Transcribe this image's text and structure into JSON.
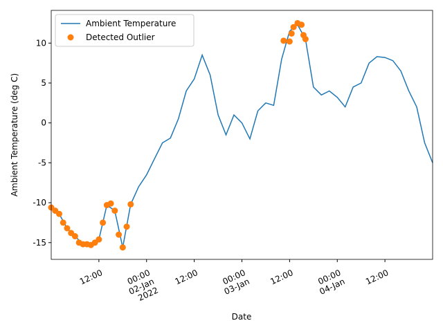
{
  "chart_data": {
    "type": "line",
    "xlabel": "Date",
    "ylabel": "Ambient Temperature (deg C)",
    "xlim": [
      "2022-01-01 00:00",
      "2022-01-05 00:00"
    ],
    "xticks": [
      {
        "value": "2022-01-01 12:00",
        "label": "12:00"
      },
      {
        "value": "2022-01-02 00:00",
        "label": "00:00\n02-Jan\n2022"
      },
      {
        "value": "2022-01-02 12:00",
        "label": "12:00"
      },
      {
        "value": "2022-01-03 00:00",
        "label": "00:00\n03-Jan"
      },
      {
        "value": "2022-01-03 12:00",
        "label": "12:00"
      },
      {
        "value": "2022-01-04 00:00",
        "label": "00:00\n04-Jan"
      },
      {
        "value": "2022-01-04 12:00",
        "label": "12:00"
      }
    ],
    "ylim": [
      -17.1,
      14.1
    ],
    "yticks": [
      -15,
      -10,
      -5,
      0,
      5,
      10
    ],
    "legend": "upper left",
    "series": [
      {
        "name": "Ambient Temperature",
        "type": "line",
        "color": "#1f77b4",
        "x": [
          "2022-01-01 00:00",
          "2022-01-01 02:00",
          "2022-01-01 04:00",
          "2022-01-01 06:00",
          "2022-01-01 08:00",
          "2022-01-01 10:00",
          "2022-01-01 12:00",
          "2022-01-01 14:00",
          "2022-01-01 16:00",
          "2022-01-01 18:00",
          "2022-01-01 20:00",
          "2022-01-01 22:00",
          "2022-01-02 00:00",
          "2022-01-02 02:00",
          "2022-01-02 04:00",
          "2022-01-02 06:00",
          "2022-01-02 08:00",
          "2022-01-02 10:00",
          "2022-01-02 12:00",
          "2022-01-02 14:00",
          "2022-01-02 16:00",
          "2022-01-02 18:00",
          "2022-01-02 20:00",
          "2022-01-02 22:00",
          "2022-01-03 00:00",
          "2022-01-03 02:00",
          "2022-01-03 04:00",
          "2022-01-03 06:00",
          "2022-01-03 08:00",
          "2022-01-03 10:00",
          "2022-01-03 12:00",
          "2022-01-03 14:00",
          "2022-01-03 16:00",
          "2022-01-03 18:00",
          "2022-01-03 20:00",
          "2022-01-03 22:00",
          "2022-01-04 00:00",
          "2022-01-04 02:00",
          "2022-01-04 04:00",
          "2022-01-04 06:00",
          "2022-01-04 08:00",
          "2022-01-04 10:00",
          "2022-01-04 12:00",
          "2022-01-04 14:00",
          "2022-01-04 16:00",
          "2022-01-04 18:00",
          "2022-01-04 20:00",
          "2022-01-04 22:00",
          "2022-01-05 00:00"
        ],
        "values": [
          -10.6,
          -11.4,
          -13.2,
          -14.2,
          -15.2,
          -15.3,
          -14.6,
          -10.3,
          -11.0,
          -15.6,
          -10.2,
          -8.0,
          -6.5,
          -4.5,
          -2.5,
          -1.9,
          0.5,
          4.0,
          5.5,
          8.5,
          6.0,
          1.0,
          -1.5,
          1.0,
          0.0,
          -2.0,
          1.5,
          2.5,
          2.2,
          8.0,
          11.5,
          12.3,
          10.5,
          4.5,
          3.5,
          4.0,
          3.2,
          2.0,
          4.5,
          5.0,
          7.5,
          8.3,
          8.2,
          7.8,
          6.5,
          4.0,
          2.0,
          -2.5,
          -5.0
        ]
      },
      {
        "name": "Detected Outlier",
        "type": "scatter",
        "color": "#ff7f0e",
        "x": [
          "2022-01-01 00:00",
          "2022-01-01 01:00",
          "2022-01-01 02:00",
          "2022-01-01 03:00",
          "2022-01-01 04:00",
          "2022-01-01 05:00",
          "2022-01-01 06:00",
          "2022-01-01 07:00",
          "2022-01-01 08:00",
          "2022-01-01 09:00",
          "2022-01-01 10:00",
          "2022-01-01 11:00",
          "2022-01-01 12:00",
          "2022-01-01 13:00",
          "2022-01-01 14:00",
          "2022-01-01 15:00",
          "2022-01-01 16:00",
          "2022-01-01 17:00",
          "2022-01-01 18:00",
          "2022-01-01 19:00",
          "2022-01-01 20:00",
          "2022-01-03 10:30",
          "2022-01-03 12:00",
          "2022-01-03 12:30",
          "2022-01-03 13:00",
          "2022-01-03 14:00",
          "2022-01-03 15:00",
          "2022-01-03 15:30",
          "2022-01-03 16:00"
        ],
        "values": [
          -10.6,
          -11.0,
          -11.4,
          -12.5,
          -13.2,
          -13.8,
          -14.2,
          -15.0,
          -15.2,
          -15.2,
          -15.3,
          -15.0,
          -14.6,
          -12.5,
          -10.3,
          -10.1,
          -11.0,
          -14.0,
          -15.6,
          -13.0,
          -10.2,
          10.3,
          10.2,
          11.2,
          12.0,
          12.5,
          12.3,
          11.0,
          10.5
        ]
      }
    ]
  }
}
